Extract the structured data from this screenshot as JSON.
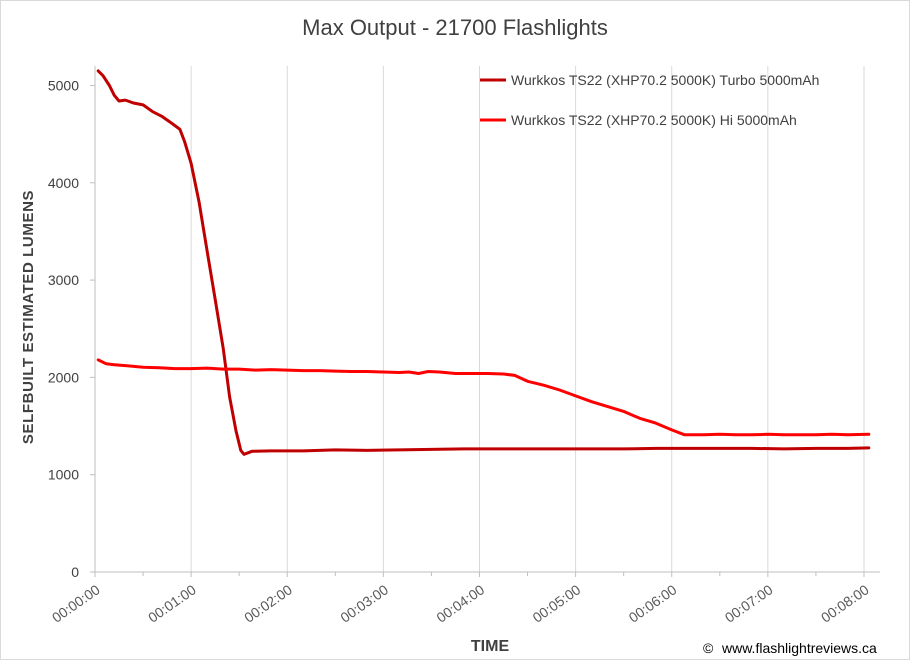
{
  "chart_data": {
    "type": "line",
    "title": "Max Output - 21700 Flashlights",
    "xlabel": "TIME",
    "ylabel": "SELFBUILT ESTIMATED LUMENS",
    "x_unit": "seconds",
    "xlim": [
      0,
      490
    ],
    "ylim": [
      0,
      5200
    ],
    "x_ticks": [
      0,
      60,
      120,
      180,
      240,
      300,
      360,
      420,
      480
    ],
    "x_tick_labels": [
      "00:00:00",
      "00:01:00",
      "00:02:00",
      "00:03:00",
      "00:04:00",
      "00:05:00",
      "00:06:00",
      "00:07:00",
      "00:08:00"
    ],
    "y_ticks": [
      0,
      1000,
      2000,
      3000,
      4000,
      5000
    ],
    "y_tick_labels": [
      "0",
      "1000",
      "2000",
      "3000",
      "4000",
      "5000"
    ],
    "grid": "vertical",
    "legend_position": "top-right",
    "series": [
      {
        "name": "Wurkkos TS22 (XHP70.2 5000K) Turbo 5000mAh",
        "color": "#c00000",
        "points": [
          [
            2,
            5150
          ],
          [
            5,
            5100
          ],
          [
            9,
            5000
          ],
          [
            12,
            4900
          ],
          [
            15,
            4840
          ],
          [
            19,
            4850
          ],
          [
            24,
            4820
          ],
          [
            30,
            4800
          ],
          [
            36,
            4730
          ],
          [
            42,
            4680
          ],
          [
            48,
            4610
          ],
          [
            53,
            4550
          ],
          [
            56,
            4420
          ],
          [
            60,
            4200
          ],
          [
            65,
            3800
          ],
          [
            70,
            3300
          ],
          [
            75,
            2800
          ],
          [
            80,
            2300
          ],
          [
            84,
            1800
          ],
          [
            88,
            1450
          ],
          [
            91,
            1250
          ],
          [
            93,
            1210
          ],
          [
            98,
            1240
          ],
          [
            110,
            1245
          ],
          [
            130,
            1245
          ],
          [
            150,
            1255
          ],
          [
            170,
            1250
          ],
          [
            190,
            1255
          ],
          [
            210,
            1260
          ],
          [
            230,
            1265
          ],
          [
            250,
            1265
          ],
          [
            270,
            1265
          ],
          [
            290,
            1265
          ],
          [
            310,
            1265
          ],
          [
            330,
            1265
          ],
          [
            350,
            1270
          ],
          [
            370,
            1270
          ],
          [
            390,
            1270
          ],
          [
            410,
            1270
          ],
          [
            430,
            1265
          ],
          [
            450,
            1270
          ],
          [
            470,
            1270
          ],
          [
            483,
            1275
          ]
        ]
      },
      {
        "name": "Wurkkos TS22 (XHP70.2 5000K) Hi 5000mAh",
        "color": "#ff0000",
        "points": [
          [
            2,
            2180
          ],
          [
            7,
            2140
          ],
          [
            12,
            2130
          ],
          [
            20,
            2120
          ],
          [
            30,
            2105
          ],
          [
            40,
            2100
          ],
          [
            50,
            2090
          ],
          [
            60,
            2090
          ],
          [
            70,
            2095
          ],
          [
            80,
            2085
          ],
          [
            90,
            2085
          ],
          [
            100,
            2075
          ],
          [
            110,
            2080
          ],
          [
            120,
            2075
          ],
          [
            130,
            2070
          ],
          [
            140,
            2070
          ],
          [
            150,
            2065
          ],
          [
            160,
            2060
          ],
          [
            170,
            2060
          ],
          [
            180,
            2055
          ],
          [
            190,
            2050
          ],
          [
            196,
            2055
          ],
          [
            202,
            2040
          ],
          [
            208,
            2060
          ],
          [
            215,
            2055
          ],
          [
            225,
            2040
          ],
          [
            235,
            2040
          ],
          [
            245,
            2040
          ],
          [
            255,
            2035
          ],
          [
            262,
            2020
          ],
          [
            270,
            1960
          ],
          [
            280,
            1920
          ],
          [
            290,
            1870
          ],
          [
            300,
            1810
          ],
          [
            310,
            1750
          ],
          [
            320,
            1700
          ],
          [
            330,
            1650
          ],
          [
            340,
            1580
          ],
          [
            350,
            1530
          ],
          [
            360,
            1460
          ],
          [
            368,
            1410
          ],
          [
            380,
            1410
          ],
          [
            390,
            1415
          ],
          [
            400,
            1410
          ],
          [
            410,
            1410
          ],
          [
            420,
            1415
          ],
          [
            430,
            1410
          ],
          [
            440,
            1410
          ],
          [
            450,
            1410
          ],
          [
            460,
            1415
          ],
          [
            470,
            1410
          ],
          [
            483,
            1415
          ]
        ]
      }
    ]
  },
  "credit": "www.flashlightreviews.ca",
  "credit_symbol": "©"
}
